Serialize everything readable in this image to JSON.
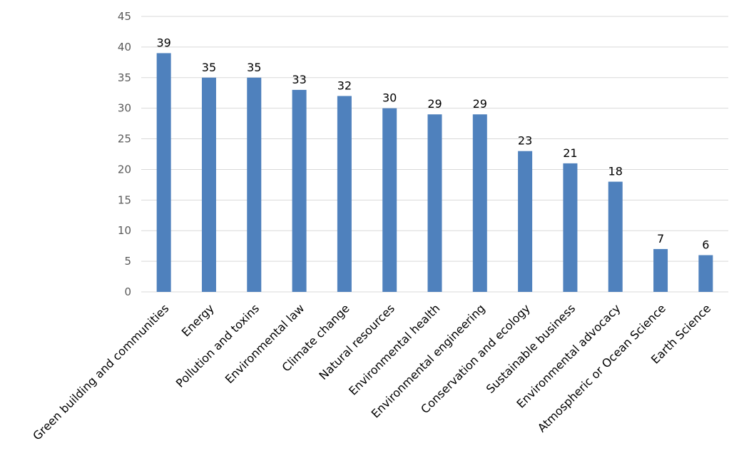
{
  "chart_data": {
    "type": "bar",
    "title": "",
    "xlabel": "",
    "ylabel": "",
    "categories": [
      "Green building and communities",
      "Energy",
      "Pollution and toxins",
      "Environmental law",
      "Climate change",
      "Natural resources",
      "Environmental health",
      "Environmental engineering",
      "Conservation and ecology",
      "Sustainable business",
      "Environmental advocacy",
      "Atmospheric or Ocean Science",
      "Earth Science"
    ],
    "values": [
      39,
      35,
      35,
      33,
      32,
      30,
      29,
      29,
      23,
      21,
      18,
      7,
      6
    ],
    "ylim": [
      0,
      45
    ],
    "yticks": [
      0,
      5,
      10,
      15,
      20,
      25,
      30,
      35,
      40,
      45
    ],
    "grid": true,
    "legend": "none",
    "bar_color": "#4f81bd",
    "grid_color": "#d9d9d9"
  }
}
